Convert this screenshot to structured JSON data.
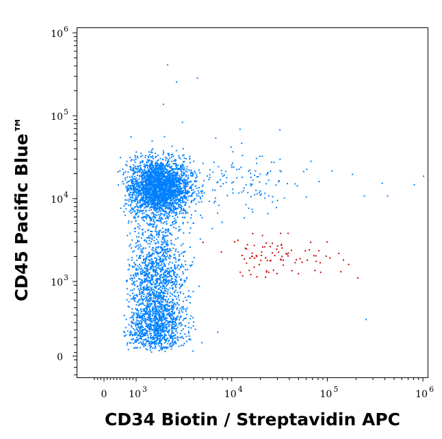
{
  "chart_data": {
    "type": "scatter",
    "title": "",
    "xlabel": "CD34 Biotin / Streptavidin APC",
    "ylabel": "CD45 Pacific Blue™",
    "x_scale": "biexponential",
    "y_scale": "biexponential",
    "xlim": [
      -300,
      1100000
    ],
    "ylim": [
      -250,
      1300000
    ],
    "x_ticks": [
      {
        "value": 0,
        "base": "0",
        "exp": ""
      },
      {
        "value": 1000,
        "base": "10",
        "exp": "3"
      },
      {
        "value": 10000,
        "base": "10",
        "exp": "4"
      },
      {
        "value": 100000,
        "base": "10",
        "exp": "5"
      },
      {
        "value": 1000000,
        "base": "10",
        "exp": "6"
      }
    ],
    "y_ticks": [
      {
        "value": 0,
        "base": "0",
        "exp": ""
      },
      {
        "value": 1000,
        "base": "10",
        "exp": "3"
      },
      {
        "value": 10000,
        "base": "10",
        "exp": "4"
      },
      {
        "value": 100000,
        "base": "10",
        "exp": "5"
      },
      {
        "value": 1000000,
        "base": "10",
        "exp": "6"
      }
    ],
    "grid": false,
    "legend": "none",
    "populations": [
      {
        "color": "#0080ff",
        "x_center": 1700,
        "y_center": 14000,
        "x_log_spread": 0.16,
        "y_log_spread": 0.17,
        "count": 2600
      },
      {
        "color": "#0080ff",
        "x_center": 1600,
        "y_center": 620,
        "x_log_spread": 0.15,
        "y_log_spread": 0.3,
        "count": 1800
      },
      {
        "color": "#0080ff",
        "x_center": 1800,
        "y_center": 3500,
        "x_log_spread": 0.15,
        "y_log_spread": 0.3,
        "count": 350
      },
      {
        "color": "#0080ff",
        "x_center": 9000,
        "y_center": 15000,
        "x_log_spread": 0.45,
        "y_log_spread": 0.2,
        "count": 170
      },
      {
        "color": "#cc0000",
        "x_center": 30000,
        "y_center": 2000,
        "x_log_spread": 0.35,
        "y_log_spread": 0.12,
        "count": 90
      }
    ],
    "outliers": [
      {
        "color": "#0080ff",
        "x": 2100,
        "y": 420000
      },
      {
        "color": "#0080ff",
        "x": 2600,
        "y": 260000
      },
      {
        "color": "#0080ff",
        "x": 4300,
        "y": 290000
      },
      {
        "color": "#0080ff",
        "x": 1900,
        "y": 140000
      },
      {
        "color": "#0080ff",
        "x": 3000,
        "y": 85000
      },
      {
        "color": "#0080ff",
        "x": 12000,
        "y": 70000
      },
      {
        "color": "#0080ff",
        "x": 1000000,
        "y": 19000
      },
      {
        "color": "#0080ff",
        "x": 800000,
        "y": 15000
      },
      {
        "color": "#0080ff",
        "x": 240000,
        "y": 11000
      },
      {
        "color": "#0080ff",
        "x": 420000,
        "y": 11000
      },
      {
        "color": "#0080ff",
        "x": 250000,
        "y": 500
      },
      {
        "color": "#0080ff",
        "x": 60000,
        "y": 23000
      },
      {
        "color": "#0080ff",
        "x": 110000,
        "y": 22000
      },
      {
        "color": "#0080ff",
        "x": 180000,
        "y": 20000
      }
    ]
  }
}
